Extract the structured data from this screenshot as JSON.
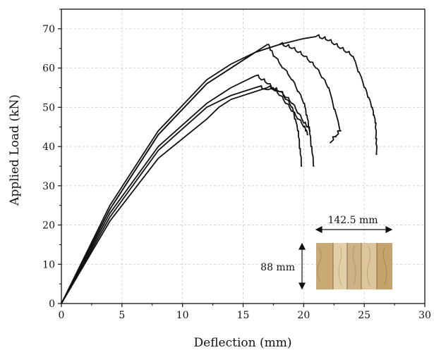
{
  "chart_data": {
    "type": "line",
    "title": "",
    "xlabel": "Deflection (mm)",
    "ylabel": "Applied Load (kN)",
    "xlim": [
      0,
      30
    ],
    "ylim": [
      0,
      75
    ],
    "xticks": [
      0,
      5,
      10,
      15,
      20,
      25,
      30
    ],
    "yticks": [
      0,
      10,
      20,
      30,
      40,
      50,
      60,
      70
    ],
    "grid": true,
    "legend": "none",
    "series": [
      {
        "x": [
          0,
          4,
          8,
          12,
          14,
          16,
          17,
          17.5,
          19,
          20,
          20.4,
          20.8
        ],
        "y": [
          0,
          25,
          44,
          57,
          61,
          64,
          66,
          63,
          57,
          51,
          45,
          35
        ]
      },
      {
        "x": [
          0,
          4,
          8,
          12,
          14,
          16,
          18,
          19,
          20,
          21,
          22,
          23,
          22.2
        ],
        "y": [
          0,
          24,
          43,
          56,
          60,
          64,
          66,
          65,
          63,
          60,
          55,
          44,
          41
        ]
      },
      {
        "x": [
          0,
          4,
          8,
          12,
          14,
          16,
          18,
          20,
          21,
          22,
          23,
          24,
          25,
          25.6,
          25.9,
          26
        ],
        "y": [
          0,
          24,
          43,
          56,
          60,
          64,
          66,
          67.5,
          68,
          67,
          65,
          63,
          55,
          50,
          46,
          38
        ]
      },
      {
        "x": [
          0,
          4,
          8,
          12,
          14,
          16,
          17,
          18,
          19,
          20,
          20.3
        ],
        "y": [
          0,
          23,
          40,
          51,
          55,
          58,
          56,
          53,
          49,
          45,
          43
        ]
      },
      {
        "x": [
          0,
          4,
          8,
          12,
          14,
          16,
          18,
          19,
          19.5,
          19.8
        ],
        "y": [
          0,
          22,
          39,
          50,
          53,
          55,
          54,
          50,
          44,
          35
        ]
      },
      {
        "x": [
          0,
          4,
          8,
          12,
          13,
          14,
          16,
          17,
          18,
          19,
          20,
          20.5
        ],
        "y": [
          0,
          21,
          37,
          47,
          50,
          52,
          54,
          55,
          54,
          51,
          46,
          44
        ]
      }
    ],
    "annotations": [
      {
        "text": "142.5 mm"
      },
      {
        "text": "88 mm"
      }
    ]
  },
  "colors": {
    "line": "#111111",
    "grid": "#c8c8c8",
    "wood_light": "#d9c29a",
    "wood_mid": "#c6a871",
    "wood_dark": "#9c7a4b"
  }
}
